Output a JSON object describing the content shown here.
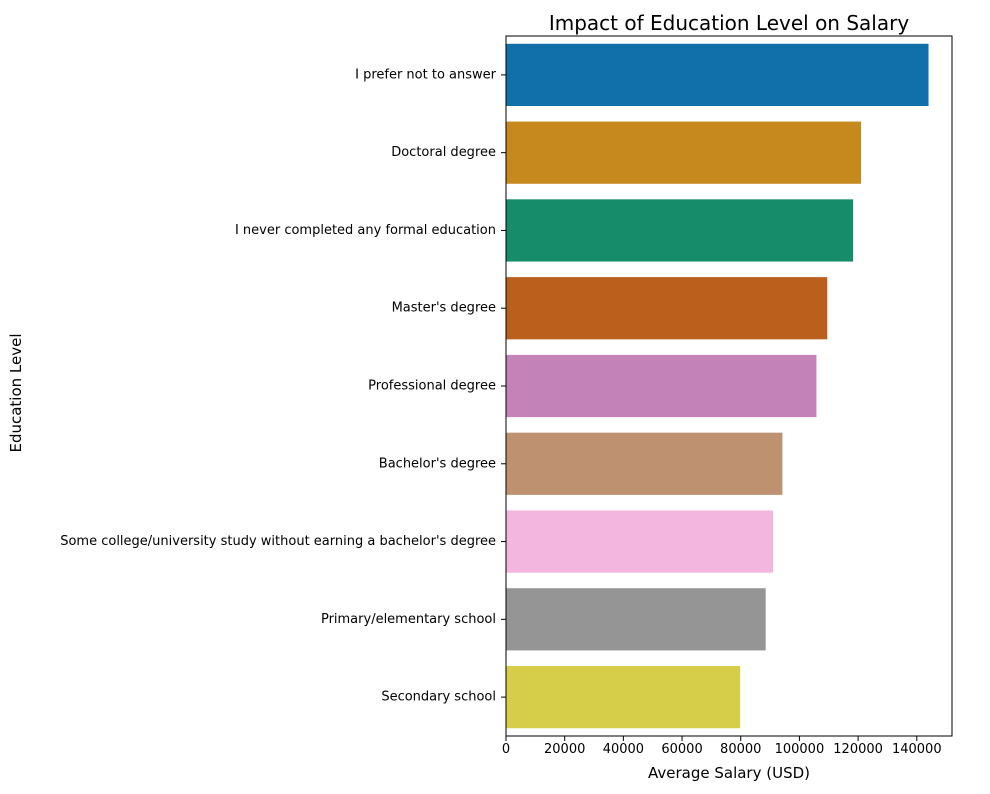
{
  "chart_data": {
    "type": "bar",
    "orientation": "horizontal",
    "title": "Impact of Education Level on Salary",
    "xlabel": "Average Salary (USD)",
    "ylabel": "Education Level",
    "xlim": [
      0,
      152000
    ],
    "xticks": [
      0,
      20000,
      40000,
      60000,
      80000,
      100000,
      120000,
      140000
    ],
    "grid": false,
    "categories": [
      "I prefer not to answer",
      "Doctoral degree",
      "I never completed any formal education",
      "Master's degree",
      "Professional degree",
      "Bachelor's degree",
      "Some college/university study without earning a bachelor's degree",
      "Primary/elementary school",
      "Secondary school"
    ],
    "values": [
      144000,
      121000,
      118300,
      109500,
      105800,
      94200,
      91000,
      88500,
      79800
    ],
    "colors": [
      "#1170aa",
      "#c5891e",
      "#168c6a",
      "#bb5f1c",
      "#c483b8",
      "#be9270",
      "#f2b6df",
      "#959595",
      "#d6cd48"
    ]
  }
}
